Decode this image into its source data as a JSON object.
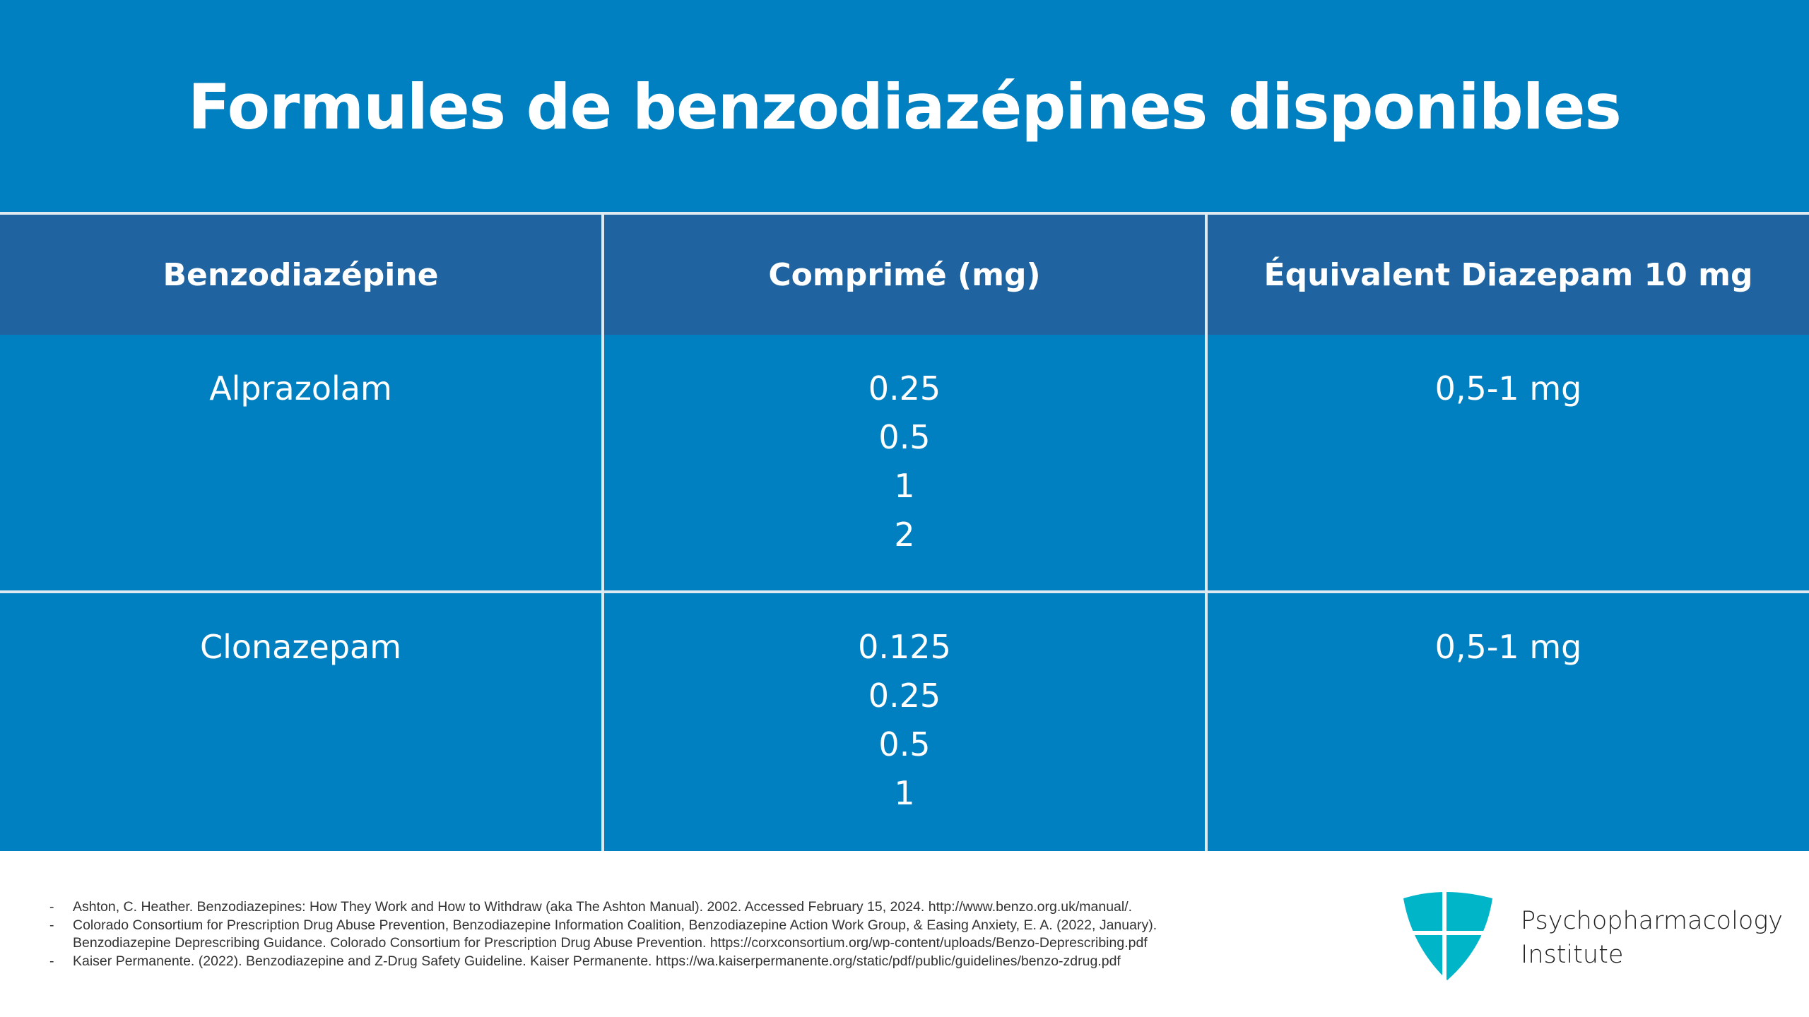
{
  "title": "Formules de benzodiazépines disponibles",
  "table": {
    "headers": [
      "Benzodiazépine",
      "Comprimé (mg)",
      "Équivalent Diazepam 10 mg"
    ],
    "rows": [
      {
        "drug": "Alprazolam",
        "tablets": [
          "0.25",
          "0.5",
          "1",
          "2"
        ],
        "equivalent": "0,5-1 mg"
      },
      {
        "drug": "Clonazepam",
        "tablets": [
          "0.125",
          "0.25",
          "0.5",
          "1"
        ],
        "equivalent": "0,5-1 mg"
      }
    ]
  },
  "references": [
    {
      "bullet": "-",
      "lines": [
        "Ashton, C. Heather. Benzodiazepines: How They Work and How to Withdraw (aka The Ashton Manual). 2002. Accessed February 15, 2024. http://www.benzo.org.uk/manual/."
      ]
    },
    {
      "bullet": "-",
      "lines": [
        "Colorado Consortium for Prescription Drug Abuse Prevention, Benzodiazepine Information Coalition, Benzodiazepine Action Work Group, & Easing Anxiety, E. A. (2022, January).",
        "Benzodiazepine Deprescribing Guidance. Colorado Consortium for Prescription Drug Abuse Prevention. https://corxconsortium.org/wp-content/uploads/Benzo-Deprescribing.pdf"
      ]
    },
    {
      "bullet": "-",
      "lines": [
        "Kaiser Permanente. (2022). Benzodiazepine and Z-Drug Safety Guideline. Kaiser Permanente. https://wa.kaiserpermanente.org/static/pdf/public/guidelines/benzo-zdrug.pdf"
      ]
    }
  ],
  "brand": {
    "line1": "Psychopharmacology",
    "line2": "Institute",
    "icon": "shield-cross-logo"
  },
  "colors": {
    "background": "#0080C0",
    "header": "#1F64A0",
    "logo": "#00B5C8"
  }
}
